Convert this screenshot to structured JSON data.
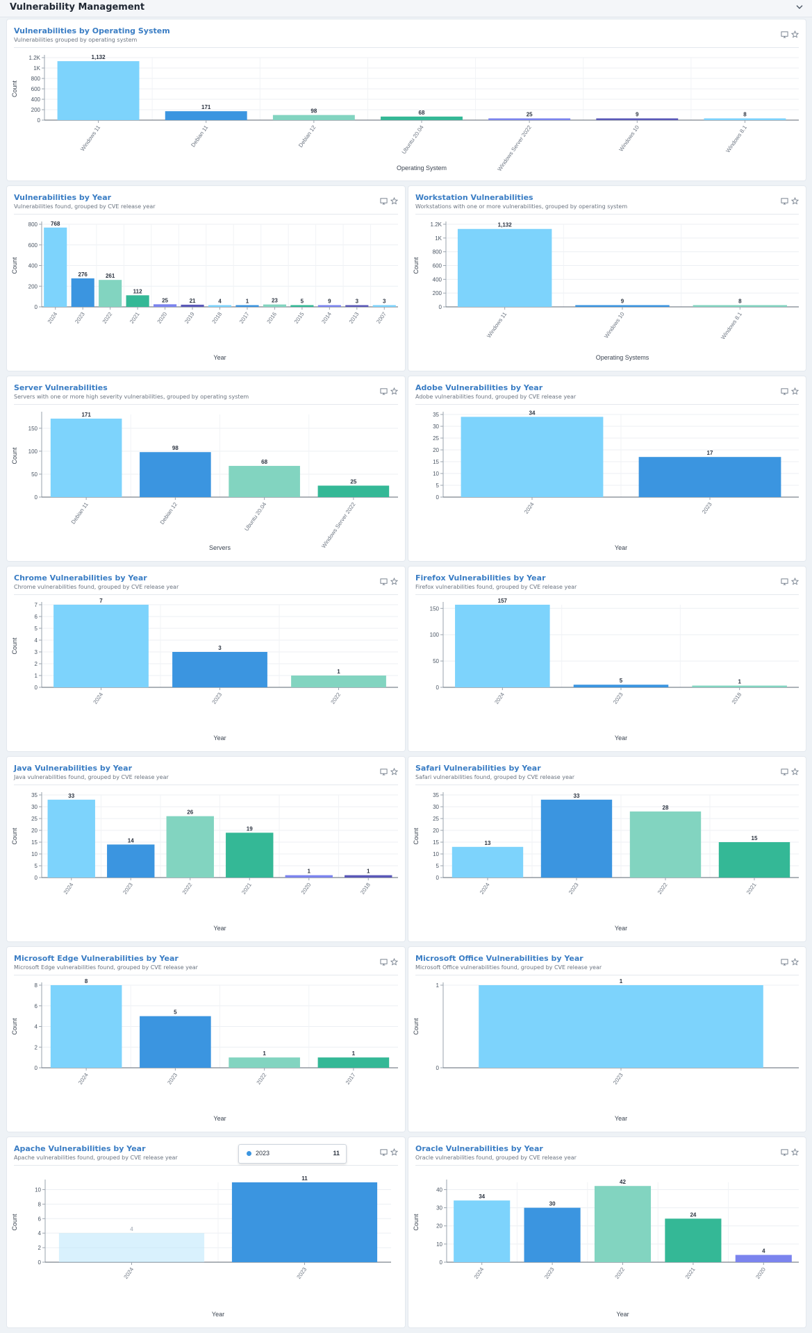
{
  "page": {
    "title": "Vulnerability Management"
  },
  "colors": [
    "#7dd3fc",
    "#3b95e0",
    "#82d4c0",
    "#34b896",
    "#7b84ee",
    "#5a58b8"
  ],
  "chart_data": [
    {
      "id": "os",
      "type": "bar",
      "title": "Vulnerabilities by Operating System",
      "subtitle": "Vulnerabilities grouped by operating system",
      "xlabel": "Operating System",
      "ylabel": "Count",
      "categories": [
        "Windows 11",
        "Debian 11",
        "Debian 12",
        "Ubuntu 20.04",
        "Windows Server 2022",
        "Windows 10",
        "Windows 8.1"
      ],
      "values": [
        1132,
        171,
        98,
        68,
        25,
        9,
        8
      ],
      "yticks": [
        0,
        200,
        400,
        600,
        800,
        1000,
        1200
      ],
      "ytick_labels": [
        "0",
        "200",
        "400",
        "600",
        "800",
        "1K",
        "1.2K"
      ],
      "ylim": [
        0,
        1200
      ],
      "grid": true
    },
    {
      "id": "year",
      "type": "bar",
      "title": "Vulnerabilities by Year",
      "subtitle": "Vulnerabilities found, grouped by CVE release year",
      "xlabel": "Year",
      "ylabel": "Count",
      "categories": [
        "2024",
        "2023",
        "2022",
        "2021",
        "2020",
        "2019",
        "2018",
        "2017",
        "2016",
        "2015",
        "2014",
        "2013",
        "2007"
      ],
      "values": [
        768,
        276,
        261,
        112,
        25,
        21,
        4,
        1,
        23,
        5,
        9,
        3,
        3
      ],
      "yticks": [
        0,
        200,
        400,
        600,
        800
      ],
      "ytick_labels": [
        "0",
        "200",
        "400",
        "600",
        "800"
      ],
      "ylim": [
        0,
        800
      ],
      "grid": true
    },
    {
      "id": "workstation",
      "type": "bar",
      "title": "Workstation Vulnerabilities",
      "subtitle": "Workstations with one or more vulnerabilities, grouped by operating system",
      "xlabel": "Operating Systems",
      "ylabel": "Count",
      "categories": [
        "Windows 11",
        "Windows 10",
        "Windows 8.1"
      ],
      "values": [
        1132,
        9,
        8
      ],
      "yticks": [
        0,
        200,
        400,
        600,
        800,
        1000,
        1200
      ],
      "ytick_labels": [
        "0",
        "200",
        "400",
        "600",
        "800",
        "1K",
        "1.2K"
      ],
      "ylim": [
        0,
        1200
      ],
      "grid": true
    },
    {
      "id": "server",
      "type": "bar",
      "title": "Server Vulnerabilities",
      "subtitle": "Servers with one or more high severity vulnerabilities, grouped by operating system",
      "xlabel": "Servers",
      "ylabel": "Count",
      "categories": [
        "Debian 11",
        "Debian 12",
        "Ubuntu 20.04",
        "Windows Server 2022"
      ],
      "values": [
        171,
        98,
        68,
        25
      ],
      "yticks": [
        0,
        50,
        100,
        150
      ],
      "ytick_labels": [
        "0",
        "50",
        "100",
        "150"
      ],
      "ylim": [
        0,
        180
      ],
      "grid": true
    },
    {
      "id": "adobe",
      "type": "bar",
      "title": "Adobe Vulnerabilities by Year",
      "subtitle": "Adobe vulnerabilities found, grouped by CVE release year",
      "xlabel": "Year",
      "ylabel": "",
      "categories": [
        "2024",
        "2023"
      ],
      "values": [
        34,
        17
      ],
      "yticks": [
        0,
        5,
        10,
        15,
        20,
        25,
        30,
        35
      ],
      "ytick_labels": [
        "0",
        "5",
        "10",
        "15",
        "20",
        "25",
        "30",
        "35"
      ],
      "ylim": [
        0,
        35
      ],
      "grid": true
    },
    {
      "id": "chrome",
      "type": "bar",
      "title": "Chrome Vulnerabilities by Year",
      "subtitle": "Chrome vulnerabilities found, grouped by CVE release year",
      "xlabel": "Year",
      "ylabel": "Count",
      "categories": [
        "2024",
        "2023",
        "2022"
      ],
      "values": [
        7,
        3,
        1
      ],
      "yticks": [
        0,
        1,
        2,
        3,
        4,
        5,
        6,
        7
      ],
      "ytick_labels": [
        "0",
        "1",
        "2",
        "3",
        "4",
        "5",
        "6",
        "7"
      ],
      "ylim": [
        0,
        7
      ],
      "grid": true
    },
    {
      "id": "firefox",
      "type": "bar",
      "title": "Firefox Vulnerabilities by Year",
      "subtitle": "Firefox vulnerabilities found, grouped by CVE release year",
      "xlabel": "Year",
      "ylabel": "",
      "categories": [
        "2024",
        "2023",
        "2018"
      ],
      "values": [
        157,
        5,
        1
      ],
      "yticks": [
        0,
        50,
        100,
        150
      ],
      "ytick_labels": [
        "0",
        "50",
        "100",
        "150"
      ],
      "ylim": [
        0,
        157
      ],
      "grid": true
    },
    {
      "id": "java",
      "type": "bar",
      "title": "Java Vulnerabilities by Year",
      "subtitle": "Java vulnerabilities found, grouped by CVE release year",
      "xlabel": "Year",
      "ylabel": "Count",
      "categories": [
        "2024",
        "2023",
        "2022",
        "2021",
        "2020",
        "2018"
      ],
      "values": [
        33,
        14,
        26,
        19,
        1,
        1
      ],
      "yticks": [
        0,
        5,
        10,
        15,
        20,
        25,
        30,
        35
      ],
      "ytick_labels": [
        "0",
        "5",
        "10",
        "15",
        "20",
        "25",
        "30",
        "35"
      ],
      "ylim": [
        0,
        35
      ],
      "grid": true
    },
    {
      "id": "safari",
      "type": "bar",
      "title": "Safari Vulnerabilities by Year",
      "subtitle": "Safari vulnerabilities found, grouped by CVE release year",
      "xlabel": "Year",
      "ylabel": "Count",
      "categories": [
        "2024",
        "2023",
        "2022",
        "2021"
      ],
      "values": [
        13,
        33,
        28,
        15
      ],
      "yticks": [
        0,
        5,
        10,
        15,
        20,
        25,
        30,
        35
      ],
      "ytick_labels": [
        "0",
        "5",
        "10",
        "15",
        "20",
        "25",
        "30",
        "35"
      ],
      "ylim": [
        0,
        35
      ],
      "grid": true
    },
    {
      "id": "edge",
      "type": "bar",
      "title": "Microsoft Edge Vulnerabilities by Year",
      "subtitle": "Microsoft Edge vulnerabilities found, grouped by CVE release year",
      "xlabel": "Year",
      "ylabel": "Count",
      "categories": [
        "2024",
        "2023",
        "2022",
        "2017"
      ],
      "values": [
        8,
        5,
        1,
        1
      ],
      "yticks": [
        0,
        2,
        4,
        6,
        8
      ],
      "ytick_labels": [
        "0",
        "2",
        "4",
        "6",
        "8"
      ],
      "ylim": [
        0,
        8
      ],
      "grid": true
    },
    {
      "id": "office",
      "type": "bar",
      "title": "Microsoft Office Vulnerabilities by Year",
      "subtitle": "Microsoft Office vulnerabilities found, grouped by CVE release year",
      "xlabel": "Year",
      "ylabel": "Count",
      "categories": [
        "2023"
      ],
      "values": [
        1
      ],
      "yticks": [
        0,
        1
      ],
      "ytick_labels": [
        "0",
        "1"
      ],
      "ylim": [
        0,
        1
      ],
      "grid": true
    },
    {
      "id": "apache",
      "type": "bar",
      "title": "Apache Vulnerabilities by Year",
      "subtitle": "Apache vulnerabilities found, grouped by CVE release year",
      "xlabel": "Year",
      "ylabel": "Count",
      "categories": [
        "2024",
        "2023"
      ],
      "values": [
        4,
        11
      ],
      "yticks": [
        0,
        2,
        4,
        6,
        8,
        10
      ],
      "ytick_labels": [
        "0",
        "2",
        "4",
        "6",
        "8",
        "10"
      ],
      "ylim": [
        0,
        11
      ],
      "grid": true,
      "highlight_index": 1,
      "tooltip": {
        "label": "2023",
        "value": "11"
      }
    },
    {
      "id": "oracle",
      "type": "bar",
      "title": "Oracle Vulnerabilities by Year",
      "subtitle": "Oracle vulnerabilities found, grouped by CVE release year",
      "xlabel": "Year",
      "ylabel": "Count",
      "categories": [
        "2024",
        "2023",
        "2022",
        "2021",
        "2020"
      ],
      "values": [
        34,
        30,
        42,
        24,
        4
      ],
      "yticks": [
        0,
        10,
        20,
        30,
        40
      ],
      "ytick_labels": [
        "0",
        "10",
        "20",
        "30",
        "40"
      ],
      "ylim": [
        0,
        44
      ],
      "grid": true
    }
  ]
}
